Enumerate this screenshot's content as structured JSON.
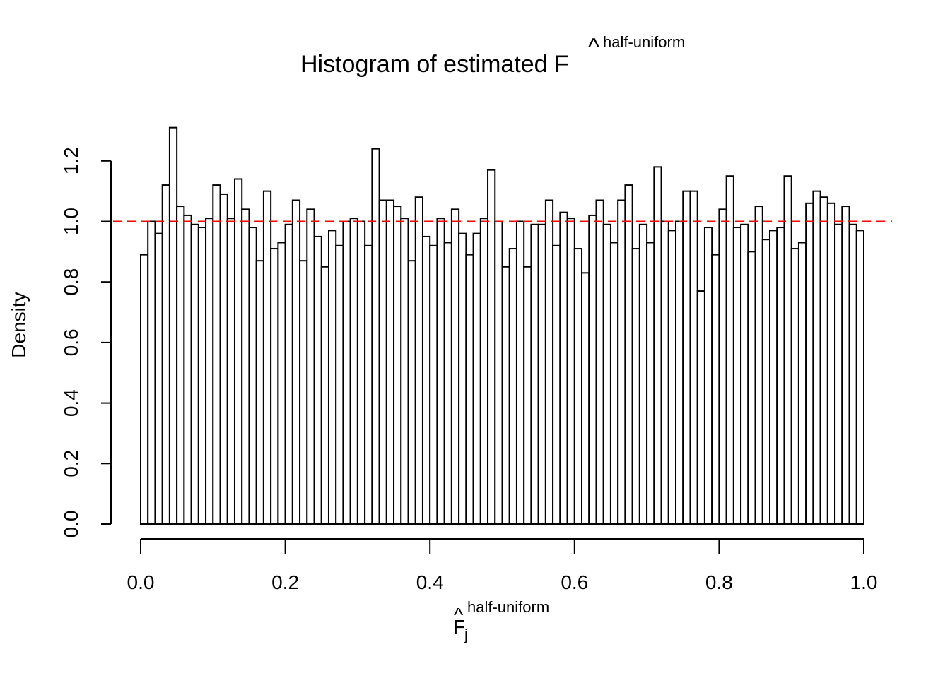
{
  "chart_data": {
    "type": "bar",
    "title": {
      "main": "Histogram of estimated F",
      "hat": "^",
      "superscript": "half-uniform"
    },
    "xlabel": {
      "main": "F",
      "hat": "^",
      "subscript": "j",
      "superscript": "half-uniform"
    },
    "ylabel": "Density",
    "xlim": [
      0,
      1
    ],
    "ylim": [
      0,
      1.3
    ],
    "bin_width": 0.01,
    "x_ticks": [
      "0.0",
      "0.2",
      "0.4",
      "0.6",
      "0.8",
      "1.0"
    ],
    "y_ticks": [
      "0.0",
      "0.2",
      "0.4",
      "0.6",
      "0.8",
      "1.0",
      "1.2"
    ],
    "reference_line": {
      "y": 1.0,
      "style": "dashed",
      "color": "#ff0000"
    },
    "bar_fill": "#ffffff",
    "bar_stroke": "#000000",
    "values": [
      0.89,
      1.0,
      0.96,
      1.12,
      1.31,
      1.05,
      1.02,
      0.99,
      0.98,
      1.01,
      1.12,
      1.09,
      1.01,
      1.14,
      1.04,
      0.98,
      0.87,
      1.1,
      0.91,
      0.93,
      0.99,
      1.07,
      0.87,
      1.04,
      0.95,
      0.85,
      0.97,
      0.92,
      1.0,
      1.01,
      1.0,
      0.92,
      1.24,
      1.07,
      1.07,
      1.05,
      1.01,
      0.87,
      1.08,
      0.95,
      0.92,
      1.01,
      0.93,
      1.04,
      0.96,
      0.89,
      0.96,
      1.01,
      1.17,
      1.0,
      0.85,
      0.91,
      1.0,
      0.85,
      0.99,
      0.99,
      1.07,
      0.92,
      1.03,
      1.01,
      0.91,
      0.83,
      1.02,
      1.07,
      0.99,
      0.93,
      1.07,
      1.12,
      0.91,
      0.99,
      0.93,
      1.18,
      1.0,
      0.97,
      1.0,
      1.1,
      1.1,
      0.77,
      0.98,
      0.89,
      1.04,
      1.15,
      0.98,
      0.99,
      0.9,
      1.05,
      0.94,
      0.97,
      0.98,
      1.15,
      0.91,
      0.93,
      1.06,
      1.1,
      1.08,
      1.06,
      0.99,
      1.05,
      0.99,
      0.97
    ]
  }
}
